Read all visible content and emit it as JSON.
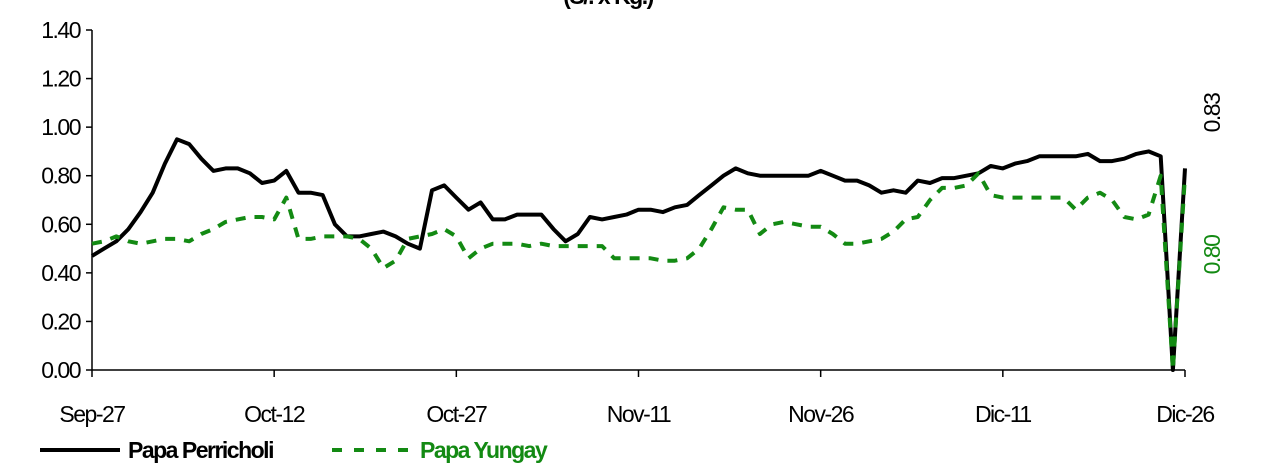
{
  "chart_data": {
    "type": "line",
    "title": "(S/. x Kg.)",
    "categories": [
      "Sep-27",
      null,
      null,
      null,
      null,
      null,
      null,
      null,
      null,
      null,
      null,
      null,
      null,
      null,
      null,
      "Oct-12",
      null,
      null,
      null,
      null,
      null,
      null,
      null,
      null,
      null,
      null,
      null,
      null,
      null,
      null,
      "Oct-27",
      null,
      null,
      null,
      null,
      null,
      null,
      null,
      null,
      null,
      null,
      null,
      null,
      null,
      null,
      "Nov-11",
      null,
      null,
      null,
      null,
      null,
      null,
      null,
      null,
      null,
      null,
      null,
      null,
      null,
      null,
      "Nov-26",
      null,
      null,
      null,
      null,
      null,
      null,
      null,
      null,
      null,
      null,
      null,
      null,
      null,
      null,
      "Dic-11",
      null,
      null,
      null,
      null,
      null,
      null,
      null,
      null,
      null,
      null,
      null,
      null,
      null,
      null,
      "Dic-26"
    ],
    "series": [
      {
        "name": "Papa Perricholi",
        "color": "#000000",
        "dashed": false,
        "values": [
          0.47,
          0.5,
          0.53,
          0.58,
          0.65,
          0.73,
          0.85,
          0.95,
          0.93,
          0.87,
          0.82,
          0.83,
          0.83,
          0.81,
          0.77,
          0.78,
          0.82,
          0.73,
          0.73,
          0.72,
          0.6,
          0.55,
          0.55,
          0.56,
          0.57,
          0.55,
          0.52,
          0.5,
          0.74,
          0.76,
          0.71,
          0.66,
          0.69,
          0.62,
          0.62,
          0.64,
          0.64,
          0.64,
          0.58,
          0.53,
          0.56,
          0.63,
          0.62,
          0.63,
          0.64,
          0.66,
          0.66,
          0.65,
          0.67,
          0.68,
          0.72,
          0.76,
          0.8,
          0.83,
          0.81,
          0.8,
          0.8,
          0.8,
          0.8,
          0.8,
          0.82,
          0.8,
          0.78,
          0.78,
          0.76,
          0.73,
          0.74,
          0.73,
          0.78,
          0.77,
          0.79,
          0.79,
          0.8,
          0.81,
          0.84,
          0.83,
          0.85,
          0.86,
          0.88,
          0.88,
          0.88,
          0.88,
          0.89,
          0.86,
          0.86,
          0.87,
          0.89,
          0.9,
          0.88,
          0.0,
          0.83
        ],
        "value_labels": [
          null,
          null,
          null,
          null,
          null,
          null,
          null,
          null,
          null,
          null,
          null,
          null,
          null,
          null,
          null,
          null,
          null,
          null,
          null,
          null,
          null,
          null,
          null,
          null,
          null,
          null,
          null,
          null,
          null,
          null,
          null,
          null,
          null,
          null,
          null,
          null,
          null,
          null,
          null,
          null,
          null,
          null,
          null,
          null,
          null,
          null,
          null,
          null,
          null,
          null,
          null,
          null,
          null,
          null,
          null,
          null,
          null,
          null,
          null,
          null,
          null,
          null,
          null,
          null,
          null,
          null,
          null,
          null,
          null,
          null,
          null,
          null,
          null,
          null,
          null,
          null,
          null,
          null,
          null,
          null,
          null,
          null,
          null,
          null,
          null,
          null,
          null,
          null,
          null,
          null,
          "0.83"
        ]
      },
      {
        "name": "Papa Yungay",
        "color": "#138a13",
        "dashed": true,
        "values": [
          0.52,
          0.53,
          0.55,
          0.53,
          0.52,
          0.53,
          0.54,
          0.54,
          0.53,
          0.56,
          0.58,
          0.61,
          0.62,
          0.63,
          0.63,
          0.62,
          0.71,
          0.54,
          0.54,
          0.55,
          0.55,
          0.55,
          0.54,
          0.5,
          0.42,
          0.45,
          0.54,
          0.55,
          0.56,
          0.58,
          0.55,
          0.46,
          0.5,
          0.52,
          0.52,
          0.52,
          0.51,
          0.52,
          0.51,
          0.51,
          0.51,
          0.51,
          0.51,
          0.46,
          0.46,
          0.46,
          0.46,
          0.45,
          0.45,
          0.46,
          0.5,
          0.58,
          0.67,
          0.66,
          0.66,
          0.56,
          0.6,
          0.61,
          0.6,
          0.59,
          0.59,
          0.56,
          0.52,
          0.52,
          0.53,
          0.54,
          0.57,
          0.62,
          0.63,
          0.7,
          0.75,
          0.75,
          0.76,
          0.81,
          0.72,
          0.71,
          0.71,
          0.71,
          0.71,
          0.71,
          0.71,
          0.66,
          0.71,
          0.73,
          0.7,
          0.63,
          0.62,
          0.64,
          0.8,
          0.0,
          0.8
        ],
        "value_labels": [
          null,
          null,
          null,
          null,
          null,
          null,
          null,
          null,
          null,
          null,
          null,
          null,
          null,
          null,
          null,
          null,
          null,
          null,
          null,
          null,
          null,
          null,
          null,
          null,
          null,
          null,
          null,
          null,
          null,
          null,
          null,
          null,
          null,
          null,
          null,
          null,
          null,
          null,
          null,
          null,
          null,
          null,
          null,
          null,
          null,
          null,
          null,
          null,
          null,
          null,
          null,
          null,
          null,
          null,
          null,
          null,
          null,
          null,
          null,
          null,
          null,
          null,
          null,
          null,
          null,
          null,
          null,
          null,
          null,
          null,
          null,
          null,
          null,
          null,
          null,
          null,
          null,
          null,
          null,
          null,
          null,
          null,
          null,
          null,
          null,
          null,
          null,
          null,
          null,
          null,
          "0.80"
        ]
      }
    ],
    "ylim": [
      0,
      1.4
    ],
    "yticks": [
      {
        "value": 0,
        "label": "0.00"
      },
      {
        "value": 0.2,
        "label": "0.20"
      },
      {
        "value": 0.4,
        "label": "0.40"
      },
      {
        "value": 0.6,
        "label": "0.60"
      },
      {
        "value": 0.8,
        "label": "0.80"
      },
      {
        "value": 1.0,
        "label": "1.00"
      },
      {
        "value": 1.2,
        "label": "1.20"
      },
      {
        "value": 1.4,
        "label": "1.40"
      }
    ],
    "grid": false,
    "legend": "bottom"
  }
}
